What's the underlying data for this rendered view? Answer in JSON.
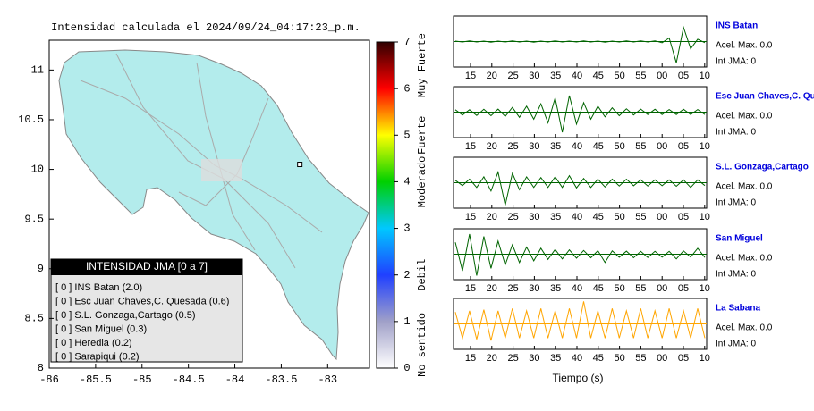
{
  "title": "Intensidad calculada el 2024/09/24_04:17:23_p.m.",
  "map": {
    "xlim": [
      -86,
      -82.55
    ],
    "ylim": [
      8,
      11.3
    ],
    "xticks": [
      -86,
      -85.5,
      -85,
      -84.5,
      -84,
      -83.5,
      -83
    ],
    "yticks": [
      11,
      10.5,
      10,
      9.5,
      9,
      8.5,
      8
    ],
    "land_color": "#b3ecec",
    "station": [
      -83.3,
      10.05
    ]
  },
  "colorbar": {
    "range": [
      0,
      7
    ],
    "ticks": [
      0,
      1,
      2,
      3,
      4,
      5,
      6,
      7
    ],
    "colors": [
      "#ffffff",
      "#a0a0c8",
      "#2040ff",
      "#00c8ff",
      "#00d000",
      "#ffff00",
      "#ff0000",
      "#300000"
    ],
    "labels": [
      {
        "text": "No sentido",
        "at": 0.5
      },
      {
        "text": "Debil",
        "at": 2
      },
      {
        "text": "Moderado",
        "at": 4
      },
      {
        "text": "Fuerte",
        "at": 5
      },
      {
        "text": "Muy Fuerte",
        "at": 6.5
      }
    ]
  },
  "legend": {
    "title": "INTENSIDAD JMA [0 a 7]",
    "entries": [
      "[ 0 ]  INS Batan (2.0)",
      "[ 0 ]  Esc Juan Chaves,C. Quesada (0.6)",
      "[ 0 ]  S.L. Gonzaga,Cartago (0.5)",
      "[ 0 ]  San Miguel (0.3)",
      "[ 0 ]  Heredia (0.2)",
      "[ 0 ]  Sarapiqui (0.2)"
    ]
  },
  "waveforms": {
    "xticks": [
      "15",
      "20",
      "25",
      "30",
      "35",
      "40",
      "45",
      "50",
      "55",
      "00",
      "05",
      "10"
    ],
    "xlabel": "Tiempo (s)",
    "panels": [
      {
        "station": "INS Batan",
        "accel": "Acel. Max. 0.0",
        "int": "Int JMA: 0",
        "color": "#006400",
        "envelope": [
          0.02,
          0.02,
          0.03,
          0.02,
          0.02,
          0.03,
          0.02,
          0.02,
          0.03,
          0.02,
          0.02,
          0.03,
          0.02,
          0.02,
          0.03,
          0.02,
          0.02,
          0.02,
          0.03,
          0.02,
          0.02,
          0.03,
          0.02,
          0.02,
          0.03,
          0.02,
          0.03,
          0.02,
          0.03,
          0.05,
          0.15,
          0.9,
          0.6,
          0.3,
          0.1,
          0.05
        ]
      },
      {
        "station": "Esc Juan Chaves,C. Qu",
        "accel": "Acel. Max. 0.0",
        "int": "Int JMA: 0",
        "color": "#006400",
        "envelope": [
          0.1,
          0.12,
          0.1,
          0.14,
          0.12,
          0.15,
          0.13,
          0.18,
          0.2,
          0.22,
          0.25,
          0.3,
          0.35,
          0.45,
          0.6,
          0.85,
          0.7,
          0.5,
          0.4,
          0.3,
          0.25,
          0.2,
          0.18,
          0.15,
          0.14,
          0.12,
          0.13,
          0.1,
          0.12,
          0.1,
          0.11,
          0.1,
          0.12,
          0.1,
          0.11,
          0.1
        ]
      },
      {
        "station": "S.L. Gonzaga,Cartago",
        "accel": "Acel. Max. 0.0",
        "int": "Int JMA: 0",
        "color": "#006400",
        "envelope": [
          0.1,
          0.12,
          0.15,
          0.2,
          0.25,
          0.35,
          0.45,
          0.95,
          0.4,
          0.3,
          0.25,
          0.2,
          0.22,
          0.2,
          0.25,
          0.2,
          0.3,
          0.22,
          0.18,
          0.2,
          0.15,
          0.18,
          0.15,
          0.14,
          0.15,
          0.13,
          0.12,
          0.14,
          0.12,
          0.13,
          0.12,
          0.15,
          0.12,
          0.2,
          0.12,
          0.12
        ]
      },
      {
        "station": "San Miguel",
        "accel": "Acel. Max. 0.0",
        "int": "Int JMA: 0",
        "color": "#006400",
        "envelope": [
          0.5,
          0.7,
          0.85,
          0.9,
          0.75,
          0.6,
          0.55,
          0.45,
          0.4,
          0.35,
          0.3,
          0.28,
          0.25,
          0.22,
          0.2,
          0.2,
          0.18,
          0.17,
          0.16,
          0.15,
          0.15,
          0.35,
          0.14,
          0.13,
          0.13,
          0.15,
          0.12,
          0.14,
          0.12,
          0.13,
          0.12,
          0.2,
          0.14,
          0.12,
          0.25,
          0.14
        ]
      },
      {
        "station": "La Sabana",
        "accel": "Acel. Max. 0.0",
        "int": "Int JMA: 0",
        "color": "#ffa500",
        "envelope": [
          0.5,
          0.6,
          0.55,
          0.65,
          0.6,
          0.7,
          0.55,
          0.6,
          0.65,
          0.6,
          0.55,
          0.6,
          0.65,
          0.6,
          0.55,
          0.6,
          0.65,
          0.6,
          0.95,
          0.6,
          0.55,
          0.6,
          0.65,
          0.6,
          0.55,
          0.6,
          0.65,
          0.6,
          0.55,
          0.6,
          0.65,
          0.6,
          0.55,
          0.6,
          0.65,
          0.6
        ]
      }
    ]
  }
}
